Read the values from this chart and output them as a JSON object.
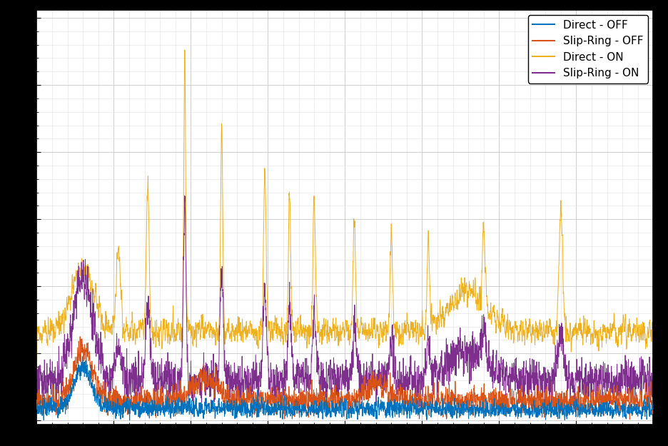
{
  "title": "",
  "xlabel": "",
  "ylabel": "",
  "line_colors": {
    "direct_off": "#0072BD",
    "slipring_off": "#D95319",
    "direct_on": "#EDB120",
    "slipring_on": "#7E2F8E"
  },
  "legend_labels": [
    "Direct - OFF",
    "Slip-Ring - OFF",
    "Direct - ON",
    "Slip-Ring - ON"
  ],
  "legend_loc": "upper right",
  "background_color": "#ffffff",
  "grid_color": "#c8c8c8",
  "minor_grid_color": "#e0e0e0",
  "linewidth": 0.7,
  "figsize": [
    9.36,
    6.25
  ],
  "dpi": 100,
  "seed": 7
}
